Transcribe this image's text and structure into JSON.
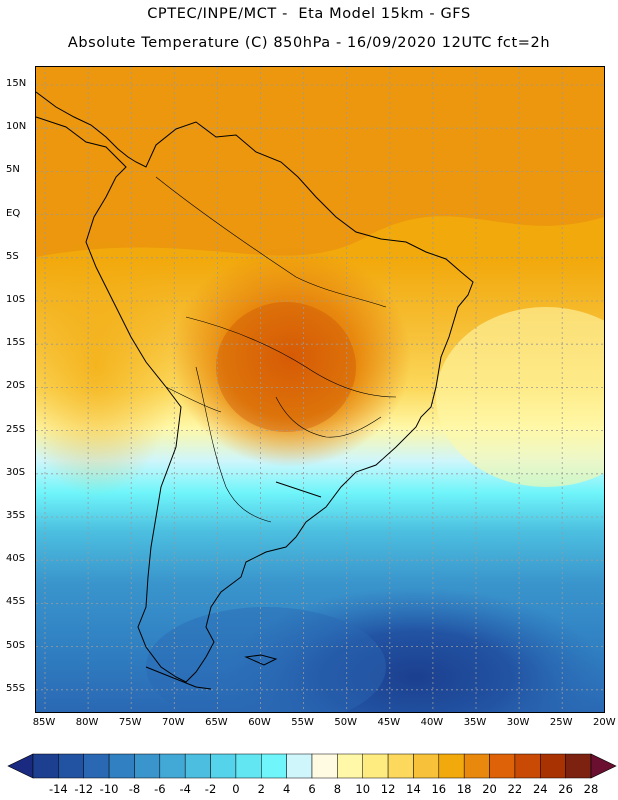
{
  "header": {
    "title_line1": "CPTEC/INPE/MCT -  Eta Model 15km - GFS",
    "title_line2": "Absolute Temperature (C) 850hPa - 16/09/2020 12UTC fct=2h"
  },
  "map": {
    "latitude_labels": [
      "15N",
      "10N",
      "5N",
      "EQ",
      "5S",
      "10S",
      "15S",
      "20S",
      "25S",
      "30S",
      "35S",
      "40S",
      "45S",
      "50S",
      "55S"
    ],
    "longitude_labels": [
      "85W",
      "80W",
      "75W",
      "70W",
      "65W",
      "60W",
      "55W",
      "50W",
      "45W",
      "40W",
      "35W",
      "30W",
      "25W",
      "20W"
    ],
    "gridlines": true
  },
  "colorbar": {
    "units": "C",
    "labels": [
      "-14",
      "-12",
      "-10",
      "-8",
      "-6",
      "-4",
      "-2",
      "0",
      "2",
      "4",
      "6",
      "8",
      "10",
      "12",
      "14",
      "16",
      "18",
      "20",
      "22",
      "24",
      "26",
      "28"
    ],
    "colors": [
      "#1c3f8f",
      "#2253a3",
      "#2a68b4",
      "#3080c2",
      "#3a95cc",
      "#42a8d6",
      "#4cbfe0",
      "#55d3ea",
      "#62e6f2",
      "#6ff5fa",
      "#cff6fb",
      "#fffbe3",
      "#fff8a8",
      "#ffec80",
      "#fcd95c",
      "#f7c23a",
      "#f2a90c",
      "#e8890e",
      "#de6308",
      "#c84a04",
      "#a83202",
      "#7d2210"
    ],
    "under_color": "#1a2a80",
    "over_color": "#6a0f30"
  }
}
